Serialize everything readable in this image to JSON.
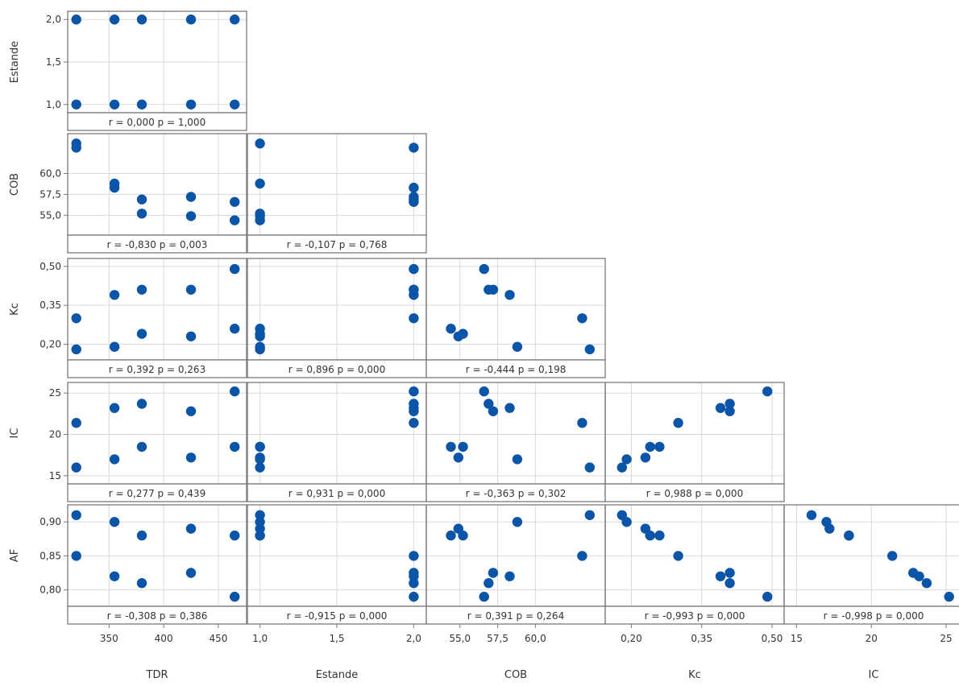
{
  "colors": {
    "point": "#0a55a8",
    "grid": "#d9d9d9",
    "frame": "#7a7a7a",
    "text": "#333333"
  },
  "chart_data": {
    "type": "scatter",
    "title": "",
    "layout": "matrix-of-plots-lower-triangle",
    "grid": true,
    "variables": [
      {
        "name": "TDR",
        "show_row": false,
        "show_col": true,
        "range": [
          318,
          470
        ],
        "ticks": [
          350,
          400,
          450
        ],
        "tick_labels": [
          "350",
          "400",
          "450"
        ]
      },
      {
        "name": "Estande",
        "show_row": true,
        "show_col": true,
        "range": [
          0.96,
          2.04
        ],
        "ticks": [
          1.0,
          1.5,
          2.0
        ],
        "tick_labels": [
          "1,0",
          "1,5",
          "2,0"
        ]
      },
      {
        "name": "COB",
        "show_row": true,
        "show_col": true,
        "range": [
          53.2,
          64.2
        ],
        "ticks": [
          55.0,
          57.5,
          60.0
        ],
        "tick_labels": [
          "55,0",
          "57,5",
          "60,0"
        ]
      },
      {
        "name": "Kc",
        "show_row": true,
        "show_col": true,
        "range": [
          0.158,
          0.512
        ],
        "ticks": [
          0.2,
          0.35,
          0.5
        ],
        "tick_labels": [
          "0,20",
          "0,35",
          "0,50"
        ]
      },
      {
        "name": "IC",
        "show_row": true,
        "show_col": true,
        "range": [
          14.6,
          25.7
        ],
        "ticks": [
          15,
          20,
          25
        ],
        "tick_labels": [
          "15",
          "20",
          "25"
        ]
      },
      {
        "name": "AF",
        "show_row": true,
        "show_col": false,
        "range": [
          0.783,
          0.918
        ],
        "ticks": [
          0.8,
          0.85,
          0.9
        ],
        "tick_labels": [
          "0,80",
          "0,85",
          "0,90"
        ]
      }
    ],
    "observations": {
      "TDR": [
        320,
        320,
        355,
        355,
        380,
        380,
        425,
        425,
        465,
        465
      ],
      "Estande": [
        1,
        2,
        1,
        2,
        1,
        2,
        1,
        2,
        1,
        2
      ],
      "COB": [
        63.6,
        63.1,
        58.8,
        58.3,
        55.2,
        56.9,
        54.9,
        57.2,
        54.4,
        56.6
      ],
      "Kc": [
        0.18,
        0.3,
        0.19,
        0.39,
        0.24,
        0.41,
        0.23,
        0.41,
        0.26,
        0.49
      ],
      "IC": [
        16.0,
        21.4,
        17.0,
        23.2,
        18.5,
        23.7,
        17.2,
        22.8,
        18.5,
        25.2
      ],
      "AF": [
        0.91,
        0.85,
        0.9,
        0.82,
        0.88,
        0.81,
        0.89,
        0.825,
        0.88,
        0.79
      ]
    },
    "correlations": [
      {
        "x": "TDR",
        "y": "Estande",
        "label": "r = 0,000  p = 1,000"
      },
      {
        "x": "TDR",
        "y": "COB",
        "label": "r = -0,830  p = 0,003"
      },
      {
        "x": "Estande",
        "y": "COB",
        "label": "r = -0,107  p = 0,768"
      },
      {
        "x": "TDR",
        "y": "Kc",
        "label": "r = 0,392  p = 0,263"
      },
      {
        "x": "Estande",
        "y": "Kc",
        "label": "r = 0,896  p = 0,000"
      },
      {
        "x": "COB",
        "y": "Kc",
        "label": "r = -0,444  p = 0,198"
      },
      {
        "x": "TDR",
        "y": "IC",
        "label": "r = 0,277  p = 0,439"
      },
      {
        "x": "Estande",
        "y": "IC",
        "label": "r = 0,931  p = 0,000"
      },
      {
        "x": "COB",
        "y": "IC",
        "label": "r = -0,363  p = 0,302"
      },
      {
        "x": "Kc",
        "y": "IC",
        "label": "r = 0,988  p = 0,000"
      },
      {
        "x": "TDR",
        "y": "AF",
        "label": "r = -0,308  p = 0,386"
      },
      {
        "x": "Estande",
        "y": "AF",
        "label": "r = -0,915  p = 0,000"
      },
      {
        "x": "COB",
        "y": "AF",
        "label": "r = 0,391  p = 0,264"
      },
      {
        "x": "Kc",
        "y": "AF",
        "label": "r = -0,993  p = 0,000"
      },
      {
        "x": "IC",
        "y": "AF",
        "label": "r = -0,998  p = 0,000"
      }
    ]
  }
}
